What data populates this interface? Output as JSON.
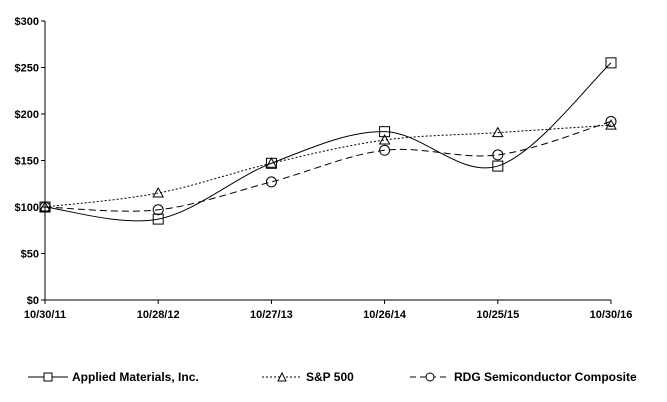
{
  "chart_data": {
    "type": "line",
    "title": "",
    "xlabel": "",
    "ylabel": "",
    "categories": [
      "10/30/11",
      "10/28/12",
      "10/27/13",
      "10/26/14",
      "10/25/15",
      "10/30/16"
    ],
    "ylim": [
      0,
      300
    ],
    "yticks": [
      0,
      50,
      100,
      150,
      200,
      250,
      300
    ],
    "ytick_labels": [
      "$0",
      "$50",
      "$100",
      "$150",
      "$200",
      "$250",
      "$300"
    ],
    "grid": false,
    "legend_placement": "bottom",
    "smoothed": true,
    "series": [
      {
        "name": "Applied Materials, Inc.",
        "values": [
          100,
          87,
          147,
          181,
          144,
          255
        ],
        "marker": "square",
        "line": "solid",
        "color": "#000000"
      },
      {
        "name": "S&P 500",
        "values": [
          100,
          115,
          147,
          172,
          180,
          188
        ],
        "marker": "triangle",
        "line": "dotted",
        "color": "#000000"
      },
      {
        "name": "RDG Semiconductor Composite",
        "values": [
          100,
          97,
          127,
          161,
          156,
          192
        ],
        "marker": "circle",
        "line": "dashed",
        "color": "#000000"
      }
    ]
  }
}
